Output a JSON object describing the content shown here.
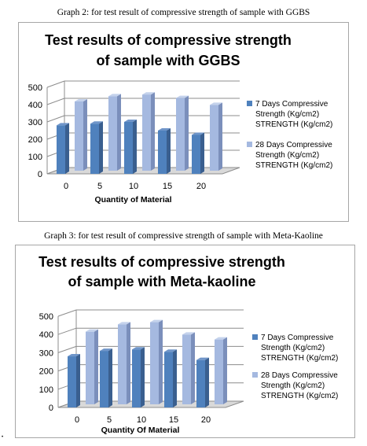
{
  "captions": [
    "Graph 2: for test result of compressive strength of sample with GGBS",
    "Graph 3: for test result of compressive strength of sample with Meta-Kaoline"
  ],
  "colors": {
    "series_front": [
      "#4f81bd",
      "#a5b9e0"
    ],
    "series_side": [
      "#3a5f8f",
      "#7b8fbb"
    ],
    "series_top": [
      "#6f95c9",
      "#c4d2ec"
    ],
    "grid": "#8c8c8c",
    "floor": "#d9d9d9"
  },
  "chart_data": [
    {
      "type": "bar",
      "title": [
        "Test results of compressive strength",
        "of sample with GGBS"
      ],
      "xlabel": "Quantity of Material",
      "ylabel": "",
      "ylim": [
        0,
        500
      ],
      "yticks": [
        0,
        100,
        200,
        300,
        400,
        500
      ],
      "categories": [
        "0",
        "5",
        "10",
        "15",
        "20"
      ],
      "legend_position": "right",
      "series": [
        {
          "name": [
            "7 Days Compressive",
            "Strength (Kg/cm2)",
            "STRENGTH    (Kg/cm2)"
          ],
          "values": [
            280,
            290,
            300,
            250,
            225
          ]
        },
        {
          "name": [
            "28 Days Compressive",
            "Strength (Kg/cm2)",
            "STRENGTH    (Kg/cm2)"
          ],
          "values": [
            400,
            430,
            440,
            420,
            380
          ]
        }
      ]
    },
    {
      "type": "bar",
      "title": [
        "Test results of compressive strength",
        "of sample with Meta-kaoline"
      ],
      "xlabel": "Quantity Of Material",
      "ylabel": "",
      "ylim": [
        0,
        500
      ],
      "yticks": [
        0,
        100,
        200,
        300,
        400,
        500
      ],
      "categories": [
        "0",
        "5",
        "10",
        "15",
        "20"
      ],
      "legend_position": "right",
      "series": [
        {
          "name": [
            "7 Days Compressive",
            "Strength (Kg/cm2)",
            "STRENGTH    (Kg/cm2)"
          ],
          "values": [
            280,
            310,
            318,
            305,
            260
          ]
        },
        {
          "name": [
            "28 Days Compressive",
            "Strength (Kg/cm2)",
            "STRENGTH    (Kg/cm2)"
          ],
          "values": [
            398,
            438,
            450,
            382,
            355
          ]
        }
      ]
    }
  ]
}
